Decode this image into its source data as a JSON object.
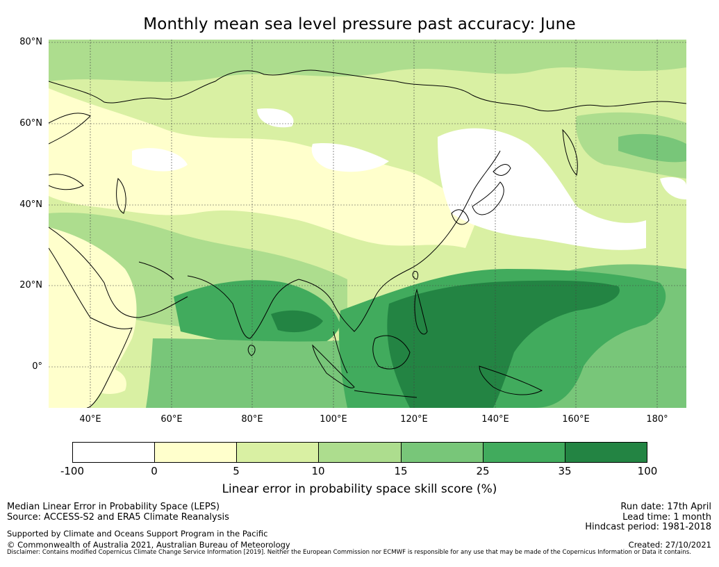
{
  "title": "Monthly mean sea level pressure past accuracy: June",
  "map": {
    "lat_ticks": [
      "80°N",
      "60°N",
      "40°N",
      "20°N",
      "0°"
    ],
    "lon_ticks": [
      "40°E",
      "60°E",
      "80°E",
      "100°E",
      "120°E",
      "140°E",
      "160°E",
      "180°"
    ],
    "lat_values": [
      80,
      60,
      40,
      20,
      0
    ],
    "lon_values": [
      40,
      60,
      80,
      100,
      120,
      140,
      160,
      180
    ],
    "extent": {
      "lon_min": 30,
      "lon_max": 190,
      "lat_min": -10,
      "lat_max": 80
    }
  },
  "colorbar": {
    "ticks": [
      "-100",
      "0",
      "5",
      "10",
      "15",
      "25",
      "35",
      "100"
    ],
    "colors": [
      "#ffffff",
      "#ffffcc",
      "#d9f0a3",
      "#addd8e",
      "#78c679",
      "#41ab5d",
      "#238443"
    ],
    "label": "Linear error in probability space skill score (%)"
  },
  "footer": {
    "left_line1": "Median Linear Error in Probability Space (LEPS)",
    "left_line2": "Source: ACCESS-S2 and ERA5 Climate Reanalysis",
    "left_line3": "Supported by Climate and Oceans Support Program in the Pacific",
    "left_line4": "© Commonwealth of Australia 2021, Australian Bureau of Meteorology",
    "right_line1": "Run date: 17th April",
    "right_line2": "Lead time: 1 month",
    "right_line3": "Hindcast period: 1981-2018",
    "right_line4": "Created: 27/10/2021",
    "disclaimer": "Disclaimer: Contains modified Copernicus Climate Change Service Information [2019]. Neither the European Commission nor ECMWF is responsible for any use that may be made of the Copernicus Information or Data it contains."
  }
}
